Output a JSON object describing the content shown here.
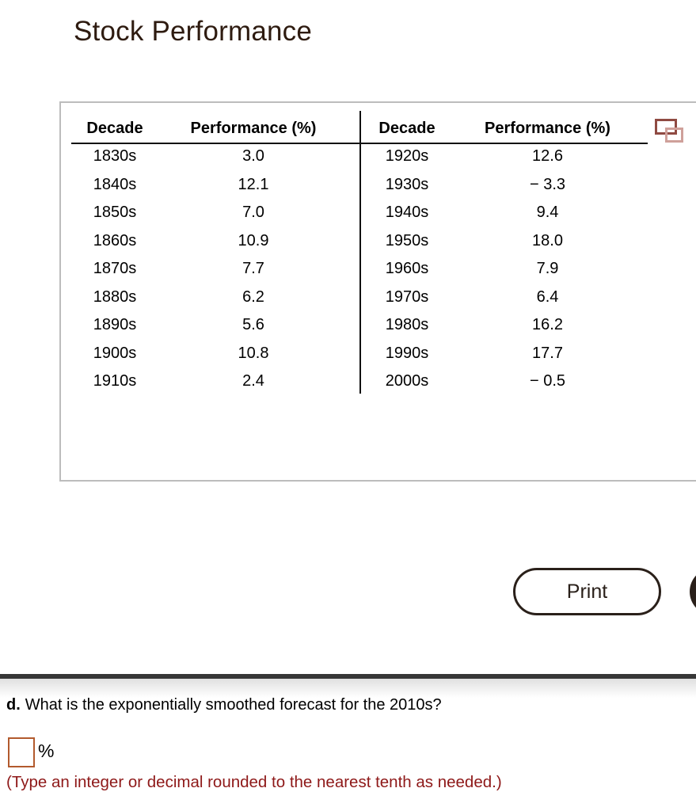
{
  "title": "Stock Performance",
  "colors": {
    "title_brown": "#2e1b10",
    "panel_border_gray": "#bcbcbc",
    "button_dark": "#2a201a",
    "divider_dark": "#373737",
    "hint_red": "#8e1818",
    "input_border_orange": "#b25a2d",
    "icon_red_dark": "#8f4a42",
    "icon_red_light": "#cfa09a"
  },
  "icons": {
    "copy_table": "two-overlapping-rectangles"
  },
  "table": {
    "left": {
      "headers": [
        "Decade",
        "Performance (%)"
      ],
      "rows": [
        [
          "1830s",
          "3.0"
        ],
        [
          "1840s",
          "12.1"
        ],
        [
          "1850s",
          "7.0"
        ],
        [
          "1860s",
          "10.9"
        ],
        [
          "1870s",
          "7.7"
        ],
        [
          "1880s",
          "6.2"
        ],
        [
          "1890s",
          "5.6"
        ],
        [
          "1900s",
          "10.8"
        ],
        [
          "1910s",
          "2.4"
        ]
      ]
    },
    "right": {
      "headers": [
        "Decade",
        "Performance (%)"
      ],
      "rows": [
        [
          "1920s",
          "12.6"
        ],
        [
          "1930s",
          "− 3.3"
        ],
        [
          "1940s",
          "9.4"
        ],
        [
          "1950s",
          "18.0"
        ],
        [
          "1960s",
          "7.9"
        ],
        [
          "1970s",
          "6.4"
        ],
        [
          "1980s",
          "16.2"
        ],
        [
          "1990s",
          "17.7"
        ],
        [
          "2000s",
          "− 0.5"
        ]
      ]
    }
  },
  "buttons": {
    "print_label": "Print"
  },
  "question": {
    "part_label": "d.",
    "text": "What is the exponentially smoothed forecast for the 2010s?",
    "answer_value": "",
    "unit_suffix": "%",
    "instruction": "(Type an integer or decimal rounded to the nearest tenth as needed.)"
  },
  "chart_data": {
    "type": "table",
    "title": "Stock Performance",
    "columns": [
      "Decade",
      "Performance (%)"
    ],
    "decades": [
      "1830s",
      "1840s",
      "1850s",
      "1860s",
      "1870s",
      "1880s",
      "1890s",
      "1900s",
      "1910s",
      "1920s",
      "1930s",
      "1940s",
      "1950s",
      "1960s",
      "1970s",
      "1980s",
      "1990s",
      "2000s"
    ],
    "performance_pct": [
      3.0,
      12.1,
      7.0,
      10.9,
      7.7,
      6.2,
      5.6,
      10.8,
      2.4,
      12.6,
      -3.3,
      9.4,
      18.0,
      7.9,
      6.4,
      16.2,
      17.7,
      -0.5
    ]
  }
}
